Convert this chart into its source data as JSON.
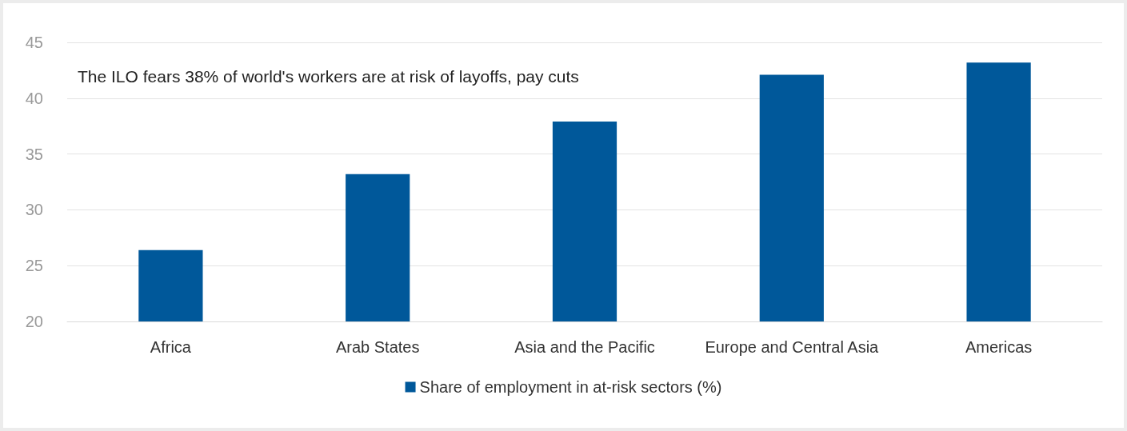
{
  "chart_data": {
    "type": "bar",
    "title": "The ILO fears 38% of world's workers are at risk of layoffs, pay cuts",
    "categories": [
      "Africa",
      "Arab States",
      "Asia and the Pacific",
      "Europe and Central Asia",
      "Americas"
    ],
    "series": [
      {
        "name": "Share of employment in at-risk sectors (%)",
        "color": "#00589a",
        "values": [
          26.4,
          33.2,
          37.9,
          42.1,
          43.2
        ]
      }
    ],
    "ylim": [
      20,
      45
    ],
    "yticks": [
      20,
      25,
      30,
      35,
      40,
      45
    ],
    "grid": "y",
    "legend": "bottom"
  }
}
